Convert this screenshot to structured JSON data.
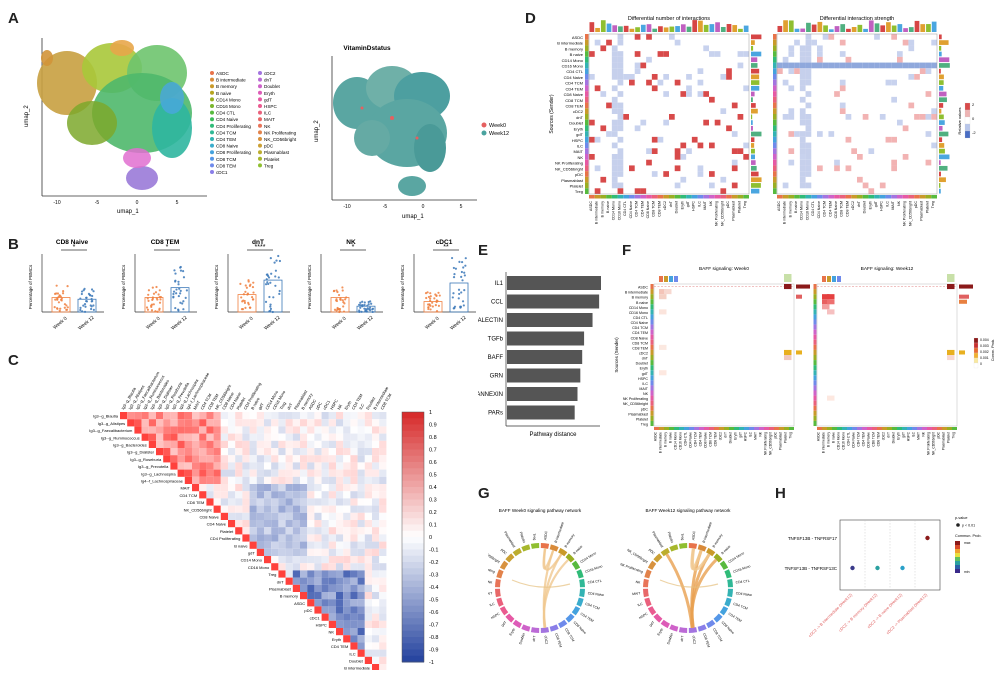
{
  "panels": {
    "A": "A",
    "B": "B",
    "C": "C",
    "D": "D",
    "E": "E",
    "F": "F",
    "G": "G",
    "H": "H"
  },
  "panelA": {
    "umap1_x": "umap_1",
    "umap1_y": "umap_2",
    "umap2_title": "VitaminDstatus",
    "umap2_x": "umap_1",
    "umap2_y": "umap_2",
    "legend_col1": [
      "ASDC",
      "B intermediate",
      "B memory",
      "B naive",
      "CD14 Mono",
      "CD16 Mono",
      "CD4 CTL",
      "CD4 Naive",
      "CD4 Proliferating",
      "CD4 TCM",
      "CD4 TEM",
      "CD8 Naive",
      "CD8 Proliferating",
      "CD8 TCM",
      "CD8 TEM",
      "cDC1"
    ],
    "legend_col2": [
      "cDC2",
      "dnT",
      "Doublet",
      "Eryth",
      "gdT",
      "HSPC",
      "ILC",
      "MAIT",
      "NK",
      "NK Proliferating",
      "NK_CD56bright",
      "pDC",
      "Plasmablast",
      "Platelet",
      "Treg"
    ],
    "legend_vd": [
      "Week0",
      "Week12"
    ],
    "xticks": [
      "-10",
      "-5",
      "0",
      "5"
    ]
  },
  "panelB": {
    "plots": [
      {
        "title": "CD8 Naive",
        "sig": "*"
      },
      {
        "title": "CD8 TEM",
        "sig": "*"
      },
      {
        "title": "dnT",
        "sig": "****"
      },
      {
        "title": "NK",
        "sig": "*"
      },
      {
        "title": "cDC1",
        "sig": "**"
      }
    ],
    "ylabel": "Percentage of PBMCs",
    "x1": "Week 0",
    "x2": "Week 12"
  },
  "panelC": {
    "scale": [
      "1",
      "0.9",
      "0.8",
      "0.7",
      "0.6",
      "0.5",
      "0.4",
      "0.3",
      "0.2",
      "0.1",
      "0",
      "-0.1",
      "-0.2",
      "-0.3",
      "-0.4",
      "-0.5",
      "-0.6",
      "-0.7",
      "-0.8",
      "-0.9",
      "-1"
    ],
    "row_labels": [
      "Ig3--g_Blautia",
      "Ig3--g_Alistipes",
      "Ig3--g_Faecalibacterium",
      "Ig3--g_Ruminococcus",
      "Ig3--g_Bacteroides",
      "Ig3--g_Dialister",
      "Ig3--g_Roseburia",
      "Ig3--g_Prevotella",
      "Ig3--g_Lachnospira",
      "Ig4--f_Lachnospiraceae",
      "MAIT",
      "CD4 TCM",
      "CD8 TEM",
      "NK_CD56bright",
      "CD8 Naive",
      "CD4 Naive",
      "Platelet",
      "CD4 Proliferating",
      "B naive",
      "gdT",
      "CD14 Mono",
      "CD16 Mono",
      "Treg",
      "dnT",
      "Plasmablast",
      "B memory",
      "ASDC",
      "pDC",
      "cDC1",
      "HSPC",
      "NK",
      "Eryth",
      "CD4 TEM",
      "ILC",
      "Doublet",
      "B intermediate",
      "CD8 TCM"
    ]
  },
  "panelD": {
    "title1": "Differential number of interactions",
    "title2": "Differential interaction strength",
    "ylabel": "Sources (Sender)",
    "rows": [
      "ASDC",
      "B intermediate",
      "B memory",
      "B naive",
      "CD14 Mono",
      "CD16 Mono",
      "CD4 CTL",
      "CD4 Naive",
      "CD4 TCM",
      "CD4 TEM",
      "CD8 Naive",
      "CD8 TCM",
      "CD8 TEM",
      "cDC2",
      "dnT",
      "Doublet",
      "Eryth",
      "gdT",
      "HSPC",
      "ILC",
      "MAIT",
      "NK",
      "NK Proliferating",
      "NK_CD56bright",
      "pDC",
      "Plasmablast",
      "Platelet",
      "Treg"
    ],
    "legend_title": "Relative values",
    "legend_vals": [
      "2",
      "0",
      "-2"
    ]
  },
  "panelE": {
    "xlabel": "Pathway distance",
    "chart_data": {
      "type": "bar",
      "categories": [
        "IL1",
        "CCL",
        "GALECTIN",
        "TGFb",
        "BAFF",
        "GRN",
        "ANNEXIN",
        "PARs"
      ],
      "values": [
        1.0,
        0.98,
        0.91,
        0.82,
        0.8,
        0.78,
        0.75,
        0.72
      ],
      "xlabel": "Pathway distance",
      "ylim": [
        0,
        1.0
      ]
    }
  },
  "panelF": {
    "title1": "BAFF signaling: Week0",
    "title2": "BAFF signaling: Week12",
    "ylabel": "Sources (Sender)",
    "legend_title": "Comm. Prob.",
    "legend_vals": [
      "0.004",
      "0.003",
      "0.002",
      "0.001",
      "0"
    ],
    "rows": [
      "ASDC",
      "B intermediate",
      "B memory",
      "B naive",
      "CD14 Mono",
      "CD16 Mono",
      "CD4 CTL",
      "CD4 Naive",
      "CD4 TCM",
      "CD4 TEM",
      "CD8 Naive",
      "CD8 TCM",
      "CD8 TEM",
      "cDC2",
      "dnT",
      "Doublet",
      "Eryth",
      "gdT",
      "HSPC",
      "ILC",
      "MAIT",
      "NK",
      "NK Proliferating",
      "NK_CD56bright",
      "pDC",
      "Plasmablast",
      "Platelet",
      "Treg"
    ]
  },
  "panelG": {
    "title1": "BAFF Week0 signaling pathway network",
    "title2": "BAFF Week12 signaling pathway network"
  },
  "panelH": {
    "rows": [
      "TNFSF13B - TNFRSF17",
      "TNFSF13B - TNFRSF13C"
    ],
    "cols": [
      "cDC2 -> B intermediate (Week12)",
      "cDC2 -> B memory (Week12)",
      "cDC2 -> B naive (Week12)",
      "cDC2 -> Plasmablast (Week12)"
    ],
    "legend_pval": "p-value",
    "legend_pval_v": "p < 0.01",
    "legend_prob": "Commun. Prob.",
    "legend_max": "max",
    "legend_min": "min"
  }
}
